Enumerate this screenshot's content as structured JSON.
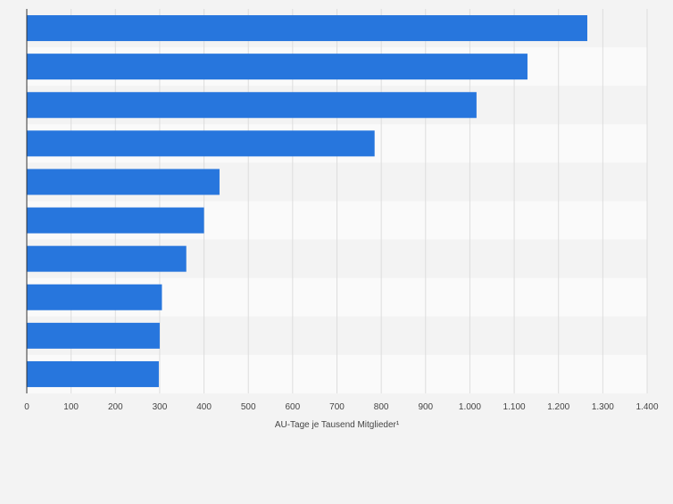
{
  "chart_data": {
    "type": "bar",
    "orientation": "horizontal",
    "categories": [
      "",
      "",
      "",
      "",
      "",
      "",
      "",
      "",
      "",
      ""
    ],
    "values": [
      1265,
      1130,
      1015,
      785,
      435,
      400,
      360,
      305,
      300,
      298
    ],
    "xlabel": "AU-Tage je Tausend Mitglieder¹",
    "ylabel": "",
    "xlim": [
      0,
      1400
    ],
    "x_ticks": [
      0,
      100,
      200,
      300,
      400,
      500,
      600,
      700,
      800,
      900,
      1000,
      1100,
      1200,
      1300,
      1400
    ],
    "x_tick_labels": [
      "0",
      "100",
      "200",
      "300",
      "400",
      "500",
      "600",
      "700",
      "800",
      "900",
      "1.000",
      "1.100",
      "1.200",
      "1.300",
      "1.400"
    ],
    "grid": "vertical",
    "legend": "none",
    "bar_color": "#2776dd",
    "band_colors": [
      "#f3f3f3",
      "#fafafa"
    ],
    "gridline_color": "#dddddd",
    "axis_color": "#333333",
    "tick_label_color": "#444444"
  }
}
